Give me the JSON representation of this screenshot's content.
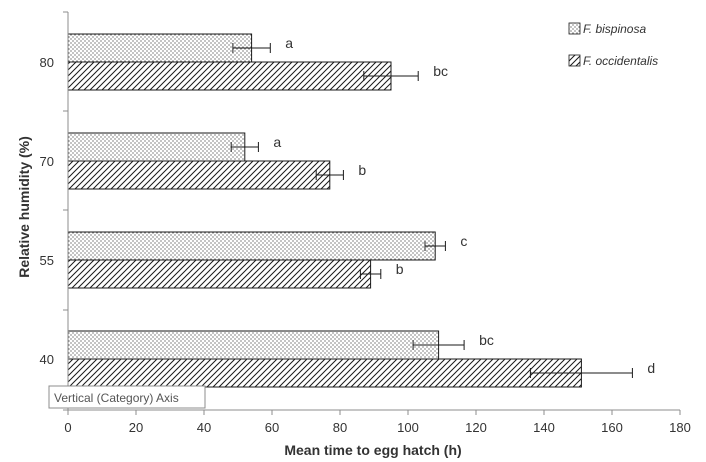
{
  "chart_data": {
    "type": "bar",
    "orientation": "horizontal",
    "xlabel": "Mean time to egg hatch (h)",
    "ylabel": "Relative humidity (%)",
    "xlim": [
      0,
      180
    ],
    "xticks": [
      "0",
      "20",
      "40",
      "60",
      "80",
      "100",
      "120",
      "140",
      "160",
      "180"
    ],
    "categories": [
      "80",
      "70",
      "55",
      "40"
    ],
    "series": [
      {
        "name": "F. bispinosa",
        "pattern": "dots",
        "values": [
          54,
          52,
          108,
          109
        ],
        "errors": [
          5.5,
          4,
          3,
          7.5
        ],
        "labels": [
          "a",
          "a",
          "c",
          "bc"
        ]
      },
      {
        "name": "F. occidentalis",
        "pattern": "diagonal-hatch",
        "values": [
          95,
          77,
          89,
          151
        ],
        "errors": [
          8,
          4,
          3,
          15
        ],
        "labels": [
          "bc",
          "b",
          "b",
          "d"
        ]
      }
    ],
    "legend_position": "top-right",
    "grid": false
  },
  "tooltip": {
    "text": "Vertical (Category) Axis"
  },
  "colors": {
    "axis": "#8c8c8c",
    "bar_outline": "#1a1a1a",
    "text": "#333333"
  }
}
